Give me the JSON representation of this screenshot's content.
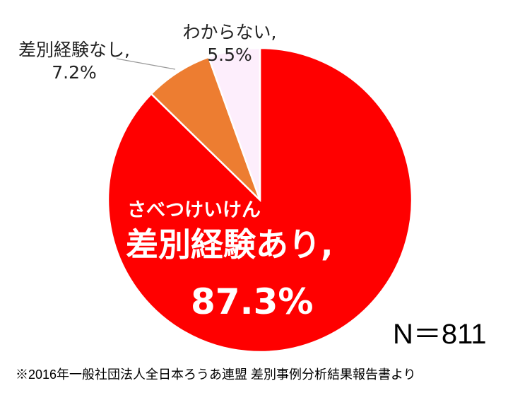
{
  "chart_data": {
    "type": "pie",
    "start": "12 o'clock, clockwise",
    "slices": [
      {
        "label": "差別経験あり,",
        "ruby": "さべつけいけん",
        "value": 87.3,
        "value_label": "87.3%",
        "color": "#ff0000"
      },
      {
        "label": "差別経験なし,",
        "value": 7.2,
        "value_label": "7.2%",
        "color": "#ed7d31"
      },
      {
        "label": "わからない,",
        "value": 5.5,
        "value_label": "5.5%",
        "color": "#fdeefc"
      }
    ],
    "n_label": "N＝811",
    "source": "※2016年一般社団法人全日本ろうあ連盟 差別事例分析結果報告書より"
  }
}
